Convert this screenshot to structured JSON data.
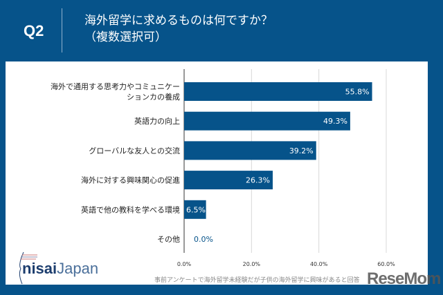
{
  "header": {
    "q_label": "Q2",
    "title_line1": "海外留学に求めるものは何ですか？",
    "title_line2": "（複数選択可）"
  },
  "chart_data": {
    "type": "bar",
    "orientation": "horizontal",
    "categories": [
      "海外で通用する思考力やコミュニケーションカの養成",
      "英語力の向上",
      "グローバルな友人との交流",
      "海外に対する興味関心の促進",
      "英語で他の教科を学べる環境",
      "その他"
    ],
    "category_lines": [
      [
        "海外で通用する思考力やコミュニケー",
        "ションカの養成"
      ],
      [
        "英語力の向上"
      ],
      [
        "グローバルな友人との交流"
      ],
      [
        "海外に対する興味関心の促進"
      ],
      [
        "英語で他の教科を学べる環境"
      ],
      [
        "その他"
      ]
    ],
    "values": [
      55.8,
      49.3,
      39.2,
      26.3,
      6.5,
      0.0
    ],
    "data_labels": [
      "55.8%",
      "49.3%",
      "39.2%",
      "26.3%",
      "6.5%",
      "0.0%"
    ],
    "xlim": [
      0,
      60
    ],
    "xticks": [
      "0.0%",
      "20.0%",
      "40.0%",
      "60.0%"
    ],
    "xtick_values": [
      0,
      20,
      40,
      60
    ],
    "grid": true,
    "bar_color": "#06538a"
  },
  "footer": {
    "note": "事前アンケートで海外留学未経験だが子供の海外留学に興味があると回答",
    "logo": "nisaiJapan",
    "watermark": "ReseMom"
  }
}
